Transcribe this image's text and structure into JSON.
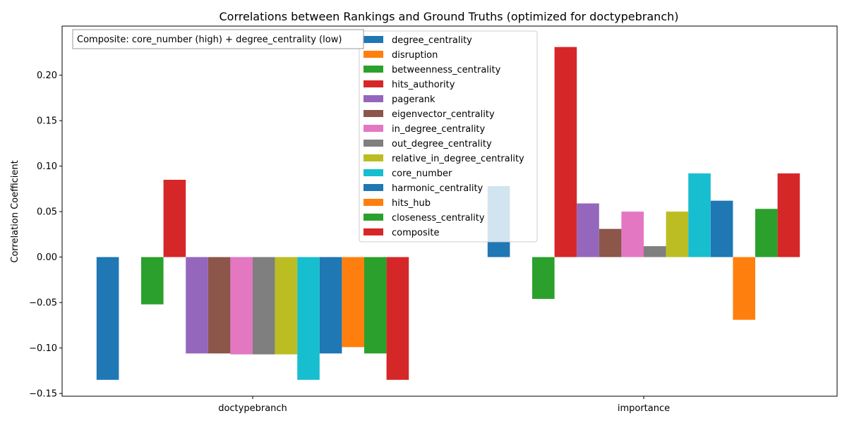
{
  "chart_data": {
    "type": "bar",
    "title": "Correlations between Rankings and Ground Truths (optimized for doctypebranch)",
    "xlabel": "",
    "ylabel": "Correlation Coefficient",
    "categories": [
      "doctypebranch",
      "importance"
    ],
    "ylim": [
      -0.153,
      0.254
    ],
    "yticks": [
      -0.15,
      -0.1,
      -0.05,
      0.0,
      0.05,
      0.1,
      0.15,
      0.2
    ],
    "ytick_labels": [
      "−0.15",
      "−0.10",
      "−0.05",
      "0.00",
      "0.05",
      "0.10",
      "0.15",
      "0.20"
    ],
    "annotation": "Composite: core_number (high) + degree_centrality (low)",
    "legend_position": "top-center",
    "grid": false,
    "series": [
      {
        "name": "degree_centrality",
        "color": "#1f77b4",
        "values": [
          -0.135,
          0.078
        ]
      },
      {
        "name": "disruption",
        "color": "#ff7f0e",
        "values": [
          0.0,
          0.0
        ]
      },
      {
        "name": "betweenness_centrality",
        "color": "#2ca02c",
        "values": [
          -0.052,
          -0.046
        ]
      },
      {
        "name": "hits_authority",
        "color": "#d62728",
        "values": [
          0.085,
          0.231
        ]
      },
      {
        "name": "pagerank",
        "color": "#9467bd",
        "values": [
          -0.106,
          0.059
        ]
      },
      {
        "name": "eigenvector_centrality",
        "color": "#8c564b",
        "values": [
          -0.106,
          0.031
        ]
      },
      {
        "name": "in_degree_centrality",
        "color": "#e377c2",
        "values": [
          -0.107,
          0.05
        ]
      },
      {
        "name": "out_degree_centrality",
        "color": "#7f7f7f",
        "values": [
          -0.107,
          0.012
        ]
      },
      {
        "name": "relative_in_degree_centrality",
        "color": "#bcbd22",
        "values": [
          -0.107,
          0.05
        ]
      },
      {
        "name": "core_number",
        "color": "#17becf",
        "values": [
          -0.135,
          0.092
        ]
      },
      {
        "name": "harmonic_centrality",
        "color": "#1f77b4",
        "values": [
          -0.106,
          0.062
        ]
      },
      {
        "name": "hits_hub",
        "color": "#ff7f0e",
        "values": [
          -0.099,
          -0.069
        ]
      },
      {
        "name": "closeness_centrality",
        "color": "#2ca02c",
        "values": [
          -0.106,
          0.053
        ]
      },
      {
        "name": "composite",
        "color": "#d62728",
        "values": [
          -0.135,
          0.092
        ]
      }
    ]
  }
}
